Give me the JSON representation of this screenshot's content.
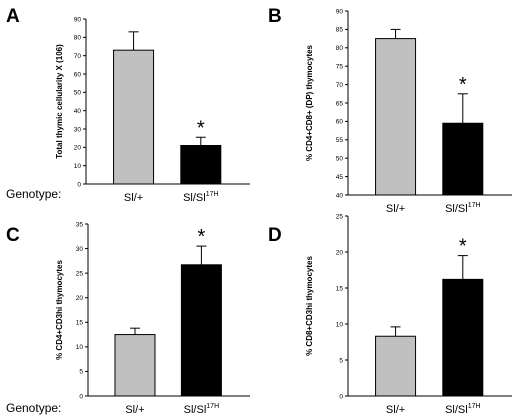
{
  "row_label": "Genotype:",
  "chart_data": [
    {
      "type": "bar",
      "panel": "A",
      "ylabel": "Total thymic cellularity X (106)",
      "ylim": [
        0,
        90
      ],
      "yticks": [
        0,
        10,
        20,
        30,
        40,
        50,
        60,
        70,
        80,
        90
      ],
      "categories": [
        "Sl/+",
        "Sl/Sl"
      ],
      "category_superscripts": [
        "",
        "17H"
      ],
      "values": [
        73,
        21
      ],
      "errors": [
        10,
        4.5
      ],
      "bar_colors": [
        "#c0c0c0",
        "#000000"
      ],
      "significance": [
        "",
        "*"
      ]
    },
    {
      "type": "bar",
      "panel": "B",
      "ylabel": "% CD4+CD8+ (DP) thymocytes",
      "ylim": [
        40,
        90
      ],
      "yticks": [
        40,
        45,
        50,
        55,
        60,
        65,
        70,
        75,
        80,
        85,
        90
      ],
      "categories": [
        "Sl/+",
        "Sl/Sl"
      ],
      "category_superscripts": [
        "",
        "17H"
      ],
      "values": [
        82.5,
        59.5
      ],
      "errors": [
        2.5,
        8
      ],
      "bar_colors": [
        "#c0c0c0",
        "#000000"
      ],
      "significance": [
        "",
        "*"
      ]
    },
    {
      "type": "bar",
      "panel": "C",
      "ylabel": "% CD4+CD3hi thymocytes",
      "ylim": [
        0,
        35
      ],
      "yticks": [
        0,
        5,
        10,
        15,
        20,
        25,
        30,
        35
      ],
      "categories": [
        "Sl/+",
        "Sl/Sl"
      ],
      "category_superscripts": [
        "",
        "17H"
      ],
      "values": [
        12.5,
        26.7
      ],
      "errors": [
        1.3,
        3.8
      ],
      "bar_colors": [
        "#c0c0c0",
        "#000000"
      ],
      "significance": [
        "",
        "*"
      ]
    },
    {
      "type": "bar",
      "panel": "D",
      "ylabel": "% CD8+CD3hi thymocytes",
      "ylim": [
        0,
        25
      ],
      "yticks": [
        0,
        5,
        10,
        15,
        20,
        25
      ],
      "categories": [
        "Sl/+",
        "Sl/Sl"
      ],
      "category_superscripts": [
        "",
        "17H"
      ],
      "values": [
        8.3,
        16.2
      ],
      "errors": [
        1.3,
        3.3
      ],
      "bar_colors": [
        "#c0c0c0",
        "#000000"
      ],
      "significance": [
        "",
        "*"
      ]
    }
  ]
}
